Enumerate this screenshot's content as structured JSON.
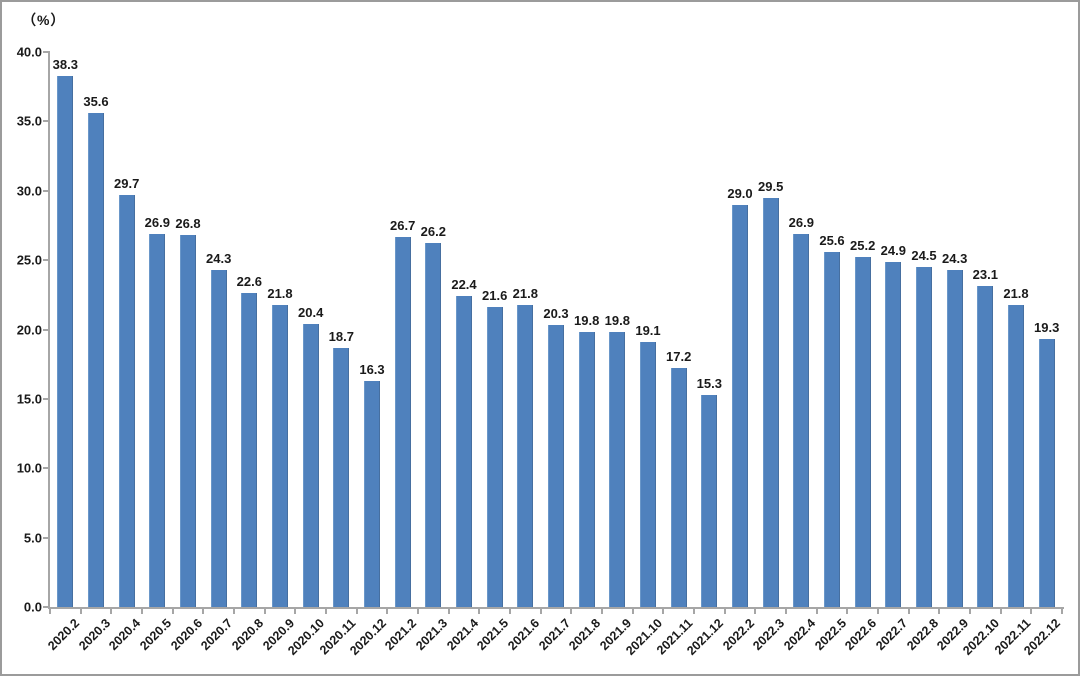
{
  "chart_data": {
    "type": "bar",
    "title": "",
    "unit_label": "（%）",
    "xlabel": "",
    "ylabel": "（%）",
    "categories": [
      "2020.2",
      "2020.3",
      "2020.4",
      "2020.5",
      "2020.6",
      "2020.7",
      "2020.8",
      "2020.9",
      "2020.10",
      "2020.11",
      "2020.12",
      "2021.2",
      "2021.3",
      "2021.4",
      "2021.5",
      "2021.6",
      "2021.7",
      "2021.8",
      "2021.9",
      "2021.10",
      "2021.11",
      "2021.12",
      "2022.2",
      "2022.3",
      "2022.4",
      "2022.5",
      "2022.6",
      "2022.7",
      "2022.8",
      "2022.9",
      "2022.10",
      "2022.11",
      "2022.12"
    ],
    "values": [
      38.3,
      35.6,
      29.7,
      26.9,
      26.8,
      24.3,
      22.6,
      21.8,
      20.4,
      18.7,
      16.3,
      26.7,
      26.2,
      22.4,
      21.6,
      21.8,
      20.3,
      19.8,
      19.8,
      19.1,
      17.2,
      15.3,
      29.0,
      29.5,
      26.9,
      25.6,
      25.2,
      24.9,
      24.5,
      24.3,
      23.1,
      21.8,
      19.3
    ],
    "ylim": [
      0,
      40
    ],
    "y_ticks": [
      "0.0",
      "5.0",
      "10.0",
      "15.0",
      "20.0",
      "25.0",
      "30.0",
      "35.0",
      "40.0"
    ],
    "data_labels_shown": true,
    "grid": false,
    "legend": "none",
    "bar_color": "#4F81BD",
    "axis_color": "#a6a6a6",
    "text_color": "#1a1a1a"
  }
}
